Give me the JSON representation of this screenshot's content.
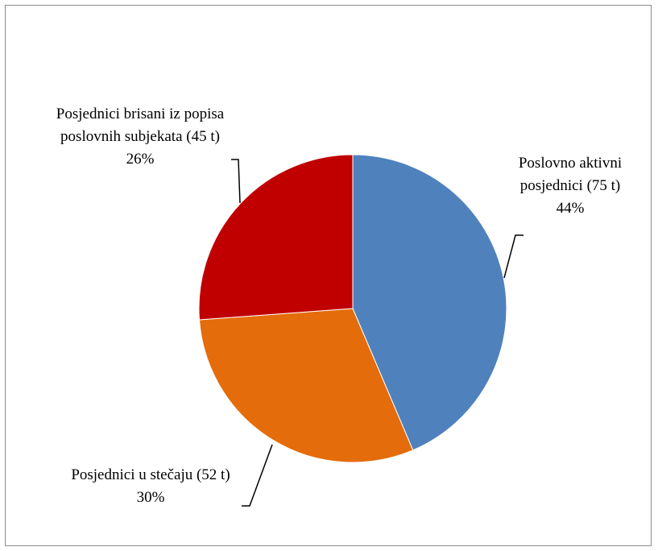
{
  "chart_data": {
    "type": "pie",
    "title": "",
    "slices": [
      {
        "label_line1": "Poslovno aktivni",
        "label_line2": "posjednici (75 t)",
        "value": 75,
        "percent": "44%",
        "color": "#4F81BD"
      },
      {
        "label_line1": "",
        "label_line2": "Posjednici u stečaju (52 t)",
        "value": 52,
        "percent": "30%",
        "color": "#E46C0A"
      },
      {
        "label_line1": "Posjednici brisani iz popisa",
        "label_line2": "poslovnih subjekata (45 t)",
        "value": 45,
        "percent": "26%",
        "color": "#C00000"
      }
    ],
    "start_angle": "12 o'clock",
    "direction": "clockwise",
    "legend": "none"
  }
}
